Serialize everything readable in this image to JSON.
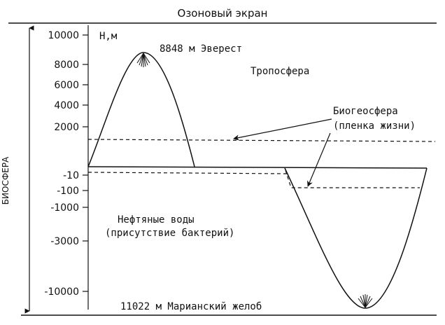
{
  "ozone_label": "Озоновый экран",
  "axis_unit": "H,м",
  "biosphere_label": "БИОСФЕРА",
  "troposphere_label": "Тропосфера",
  "everest_label": "8848 м Эверест",
  "biogeosphere_label": "Биогеосфера",
  "life_film_label": "(пленка жизни)",
  "oil_waters_label": "Нефтяные воды",
  "bacteria_label": "(присутствие бактерий)",
  "trench_label": "11022 м Марианский желоб",
  "ticks": [
    {
      "label": "10000",
      "value": 10000
    },
    {
      "label": "8000",
      "value": 8000
    },
    {
      "label": "6000",
      "value": 6000
    },
    {
      "label": "4000",
      "value": 4000
    },
    {
      "label": "2000",
      "value": 2000
    },
    {
      "label": "-10",
      "value": -10
    },
    {
      "label": "-100",
      "value": -100
    },
    {
      "label": "-1000",
      "value": -1000
    },
    {
      "label": "-3000",
      "value": -3000
    },
    {
      "label": "-10000",
      "value": -10000
    }
  ]
}
